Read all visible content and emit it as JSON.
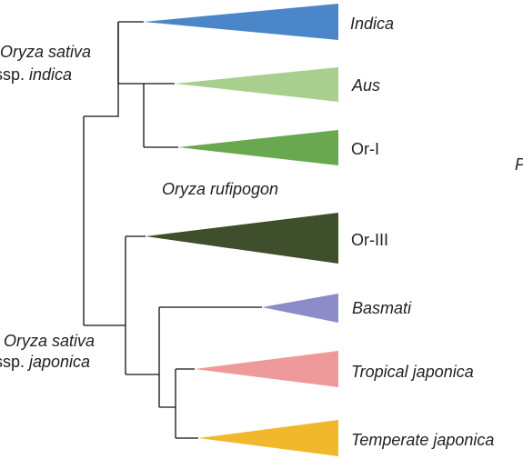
{
  "clades": [
    {
      "label": "Indica",
      "italic": true,
      "color": "#4a86c8"
    },
    {
      "label": "Aus",
      "italic": true,
      "color": "#a9cf8f"
    },
    {
      "label": "Or-I",
      "italic": false,
      "color": "#6aa84f"
    },
    {
      "label": "Or-III",
      "italic": false,
      "color": "#3f4e2b"
    },
    {
      "label": "Basmati",
      "italic": true,
      "color": "#8c8cc9"
    },
    {
      "label": "Tropical japonica",
      "italic": true,
      "color": "#ee9a9a"
    },
    {
      "label": "Temperate japonica",
      "italic": true,
      "color": "#f2b82c"
    }
  ],
  "annotations": {
    "indica_line1": "Oryza sativa",
    "indica_line2_prefix": "ssp. ",
    "indica_line2_emph": "indica",
    "rufipogon": "Oryza rufipogon",
    "japonica_line1": "Oryza sativa",
    "japonica_line2_prefix": "ssp. ",
    "japonica_line2_emph": "japonica",
    "edge_fragment": "P"
  }
}
